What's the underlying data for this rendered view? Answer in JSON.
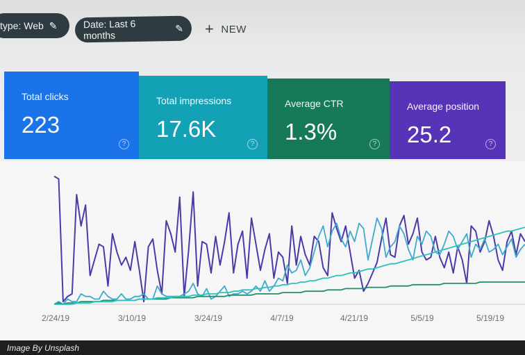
{
  "filters": {
    "type_chip": "type: Web",
    "date_chip": "Date: Last 6 months",
    "new_label": "NEW"
  },
  "metrics": [
    {
      "label": "Total clicks",
      "value": "223",
      "color": "#1a73e8"
    },
    {
      "label": "Total impressions",
      "value": "17.6K",
      "color": "#13a2b5"
    },
    {
      "label": "Average CTR",
      "value": "1.3%",
      "color": "#167a59"
    },
    {
      "label": "Average position",
      "value": "25.2",
      "color": "#5734b7"
    }
  ],
  "chart_data": {
    "type": "line",
    "x_labels": [
      "2/24/19",
      "3/10/19",
      "3/24/19",
      "4/7/19",
      "4/21/19",
      "5/5/19",
      "5/19/19"
    ],
    "series": [
      {
        "color": "#4a3aa8",
        "values": [
          98,
          96,
          2,
          6,
          8,
          84,
          60,
          76,
          22,
          34,
          46,
          44,
          14,
          54,
          40,
          30,
          36,
          26,
          48,
          26,
          2,
          44,
          50,
          26,
          8,
          64,
          54,
          40,
          82,
          6,
          42,
          86,
          14,
          48,
          46,
          24,
          52,
          30,
          48,
          70,
          24,
          46,
          56,
          20,
          66,
          46,
          26,
          42,
          54,
          20,
          40,
          36,
          16,
          60,
          30,
          52,
          38,
          30,
          52,
          48,
          28,
          22,
          70,
          58,
          48,
          60,
          40,
          20,
          26,
          10,
          16,
          24,
          32,
          50,
          66,
          38,
          36,
          60,
          68,
          46,
          54,
          66,
          40,
          34,
          36,
          52,
          36,
          28,
          40,
          24,
          44,
          34,
          16,
          60,
          56,
          40,
          48,
          64,
          52,
          34,
          26,
          48,
          56,
          38,
          54,
          48
        ]
      },
      {
        "color": "#3fa9cc",
        "values": [
          0,
          2,
          0,
          4,
          2,
          2,
          8,
          6,
          6,
          4,
          4,
          10,
          6,
          4,
          4,
          8,
          4,
          4,
          6,
          6,
          8,
          4,
          4,
          14,
          8,
          6,
          6,
          6,
          6,
          8,
          10,
          16,
          8,
          6,
          12,
          4,
          6,
          10,
          14,
          6,
          8,
          8,
          10,
          8,
          10,
          14,
          10,
          18,
          10,
          14,
          20,
          18,
          30,
          24,
          26,
          34,
          22,
          28,
          40,
          52,
          60,
          44,
          56,
          62,
          50,
          44,
          56,
          48,
          62,
          58,
          34,
          50,
          66,
          58,
          36,
          44,
          48,
          60,
          54,
          42,
          34,
          52,
          46,
          56,
          52,
          40,
          38,
          46,
          56,
          52,
          42,
          48,
          54,
          36,
          46,
          42,
          50,
          40,
          42,
          46,
          38,
          44,
          50,
          36,
          42,
          46
        ]
      },
      {
        "color": "#1f8f6c",
        "values": [
          0,
          1,
          0,
          1,
          1,
          1,
          2,
          2,
          2,
          2,
          2,
          3,
          3,
          3,
          3,
          3,
          3,
          3,
          3,
          4,
          4,
          4,
          4,
          4,
          4,
          4,
          5,
          5,
          5,
          5,
          5,
          5,
          6,
          6,
          6,
          6,
          6,
          6,
          6,
          7,
          7,
          7,
          7,
          7,
          7,
          8,
          8,
          8,
          8,
          8,
          8,
          9,
          9,
          9,
          9,
          9,
          10,
          10,
          10,
          10,
          10,
          11,
          11,
          11,
          11,
          12,
          12,
          12,
          12,
          12,
          13,
          13,
          13,
          13,
          13,
          14,
          14,
          14,
          14,
          14,
          15,
          15,
          15,
          15,
          15,
          15,
          15,
          16,
          16,
          16,
          16,
          16,
          16,
          16,
          16,
          17,
          17,
          17,
          17,
          17,
          17,
          17,
          17,
          17,
          17,
          17
        ]
      },
      {
        "color": "#2fc0bd",
        "values": [
          0,
          0,
          0,
          0,
          0,
          1,
          1,
          1,
          1,
          2,
          2,
          2,
          2,
          2,
          3,
          3,
          3,
          3,
          3,
          4,
          4,
          4,
          4,
          5,
          5,
          5,
          5,
          6,
          6,
          6,
          6,
          7,
          7,
          7,
          8,
          8,
          8,
          9,
          9,
          9,
          10,
          10,
          11,
          11,
          11,
          12,
          12,
          13,
          13,
          14,
          14,
          15,
          15,
          16,
          16,
          17,
          17,
          18,
          18,
          19,
          20,
          20,
          21,
          22,
          22,
          23,
          24,
          24,
          25,
          26,
          27,
          27,
          28,
          29,
          30,
          31,
          31,
          32,
          33,
          34,
          35,
          36,
          37,
          38,
          39,
          40,
          41,
          42,
          43,
          44,
          45,
          46,
          47,
          48,
          49,
          50,
          51,
          52,
          53,
          54,
          55,
          56,
          56,
          57,
          58,
          59
        ]
      }
    ],
    "ylim": [
      0,
      100
    ],
    "grid": false,
    "legend": "none"
  },
  "caption": "Image By Unsplash"
}
